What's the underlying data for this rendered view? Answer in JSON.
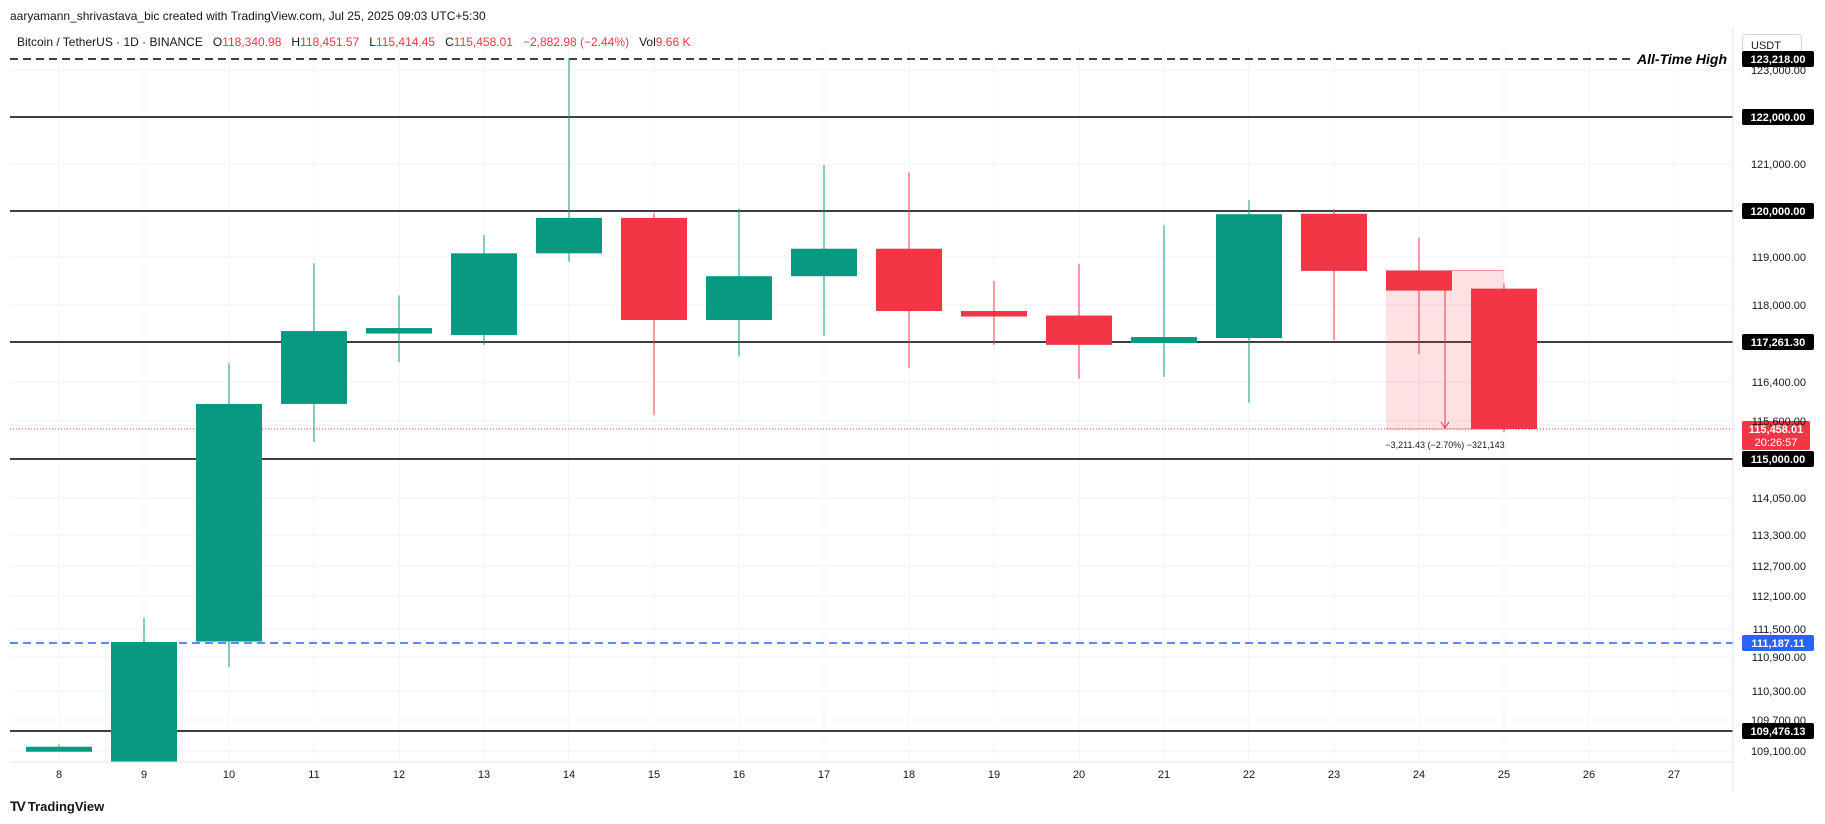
{
  "header": {
    "attribution": "aaryamann_shrivastava_bic created with TradingView.com, Jul 25, 2025 09:03 UTC+5:30",
    "legend": {
      "symbol": "Bitcoin / TetherUS · 1D · BINANCE",
      "o_label": "O",
      "o_value": "118,340.98",
      "h_label": "H",
      "h_value": "118,451.57",
      "l_label": "L",
      "l_value": "115,414.45",
      "c_label": "C",
      "c_value": "115,458.01",
      "change": "−2,882.98 (−2.44%)",
      "vol_label": "Vol",
      "vol_value": "9.66 K"
    },
    "currency": "USDT"
  },
  "footer": {
    "logo_mark": "TV",
    "logo_text": "TradingView"
  },
  "colors": {
    "up": "#089981",
    "down": "#f23645",
    "grid": "#f0f3fa",
    "blue": "#2962ff"
  },
  "chart_data": {
    "type": "candlestick",
    "x": [
      "8",
      "9",
      "10",
      "11",
      "12",
      "13",
      "14",
      "15",
      "16",
      "17",
      "18",
      "19",
      "20",
      "21",
      "22",
      "23",
      "24",
      "25",
      "26",
      "27"
    ],
    "candles": [
      {
        "day": "8",
        "open": 109170,
        "high": 109220,
        "low": 109170,
        "close": 109180
      },
      {
        "day": "9",
        "open": 108880,
        "high": 111700,
        "low": 108880,
        "close": 111210
      },
      {
        "day": "10",
        "open": 111220,
        "high": 116800,
        "low": 110720,
        "close": 115950
      },
      {
        "day": "11",
        "open": 115950,
        "high": 118870,
        "low": 115260,
        "close": 117480
      },
      {
        "day": "12",
        "open": 117430,
        "high": 118200,
        "low": 116830,
        "close": 117540
      },
      {
        "day": "13",
        "open": 117400,
        "high": 119480,
        "low": 117200,
        "close": 119080
      },
      {
        "day": "14",
        "open": 119080,
        "high": 123230,
        "low": 118900,
        "close": 119850
      },
      {
        "day": "15",
        "open": 119850,
        "high": 119950,
        "low": 115720,
        "close": 117700
      },
      {
        "day": "16",
        "open": 117700,
        "high": 120050,
        "low": 116950,
        "close": 118600
      },
      {
        "day": "17",
        "open": 118600,
        "high": 120980,
        "low": 117380,
        "close": 119180
      },
      {
        "day": "18",
        "open": 119180,
        "high": 120820,
        "low": 116700,
        "close": 117880
      },
      {
        "day": "19",
        "open": 117880,
        "high": 118500,
        "low": 117200,
        "close": 117770
      },
      {
        "day": "20",
        "open": 117790,
        "high": 118860,
        "low": 116470,
        "close": 117200
      },
      {
        "day": "21",
        "open": 117240,
        "high": 119690,
        "low": 116510,
        "close": 117360
      },
      {
        "day": "22",
        "open": 117340,
        "high": 120230,
        "low": 115980,
        "close": 119930
      },
      {
        "day": "23",
        "open": 119940,
        "high": 120040,
        "low": 117300,
        "close": 118710
      },
      {
        "day": "24",
        "open": 118710,
        "high": 119420,
        "low": 117000,
        "close": 118300
      },
      {
        "day": "25",
        "open": 118340.98,
        "high": 118451.57,
        "low": 115414.45,
        "close": 115458.01
      }
    ],
    "y_ticks": [
      "123,000.00",
      "121,000.00",
      "119,000.00",
      "118,000.00",
      "116,400.00",
      "115,600.00",
      "114,050.00",
      "113,300.00",
      "112,700.00",
      "112,100.00",
      "111,500.00",
      "110,900.00",
      "110,300.00",
      "109,700.00",
      "109,100.00"
    ],
    "levels": [
      {
        "label": "All-Time High",
        "price_label": "123,218.00",
        "style": "dashed",
        "color": "#000000"
      },
      {
        "label": "",
        "price_label": "122,000.00",
        "style": "solid",
        "color": "#000000"
      },
      {
        "label": "",
        "price_label": "120,000.00",
        "style": "solid",
        "color": "#000000"
      },
      {
        "label": "",
        "price_label": "117,261.30",
        "style": "solid",
        "color": "#000000"
      },
      {
        "label": "",
        "price_label": "115,000.00",
        "style": "solid",
        "color": "#000000"
      },
      {
        "label": "",
        "price_label": "111,187.11",
        "style": "dashed",
        "color": "#2962ff"
      },
      {
        "label": "",
        "price_label": "109,476.13",
        "style": "solid",
        "color": "#000000"
      }
    ],
    "last_price": {
      "price": "115,458.01",
      "countdown": "20:26:57"
    },
    "measure": {
      "text": "−3,211.43 (−2.70%) −321,143"
    },
    "y_scale": "piecewise",
    "grid": true
  }
}
